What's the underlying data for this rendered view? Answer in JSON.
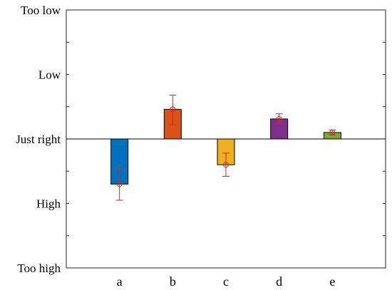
{
  "chart_data": {
    "type": "bar",
    "title": "",
    "xlabel": "",
    "ylabel": "",
    "categories": [
      "a",
      "b",
      "c",
      "d",
      "e"
    ],
    "values": [
      -0.7,
      0.46,
      -0.4,
      0.31,
      0.1
    ],
    "markers": [
      -0.7,
      0.46,
      -0.4,
      0.31,
      0.1
    ],
    "error_low": [
      -0.95,
      0.22,
      -0.58,
      0.24,
      0.06
    ],
    "error_high": [
      -0.45,
      0.68,
      -0.22,
      0.39,
      0.14
    ],
    "bar_colors": [
      "#0072BD",
      "#D95319",
      "#EDB120",
      "#7E2F8E",
      "#77AC30"
    ],
    "error_color": "#D62728",
    "ylim": [
      -2,
      2
    ],
    "y_inverted": true,
    "y_ticks": [
      {
        "value": 2,
        "label": "Too low"
      },
      {
        "value": 1,
        "label": "Low"
      },
      {
        "value": 0,
        "label": "Just right"
      },
      {
        "value": -1,
        "label": "High"
      },
      {
        "value": -2,
        "label": "Too high"
      }
    ],
    "grid": false,
    "baseline": 0
  }
}
